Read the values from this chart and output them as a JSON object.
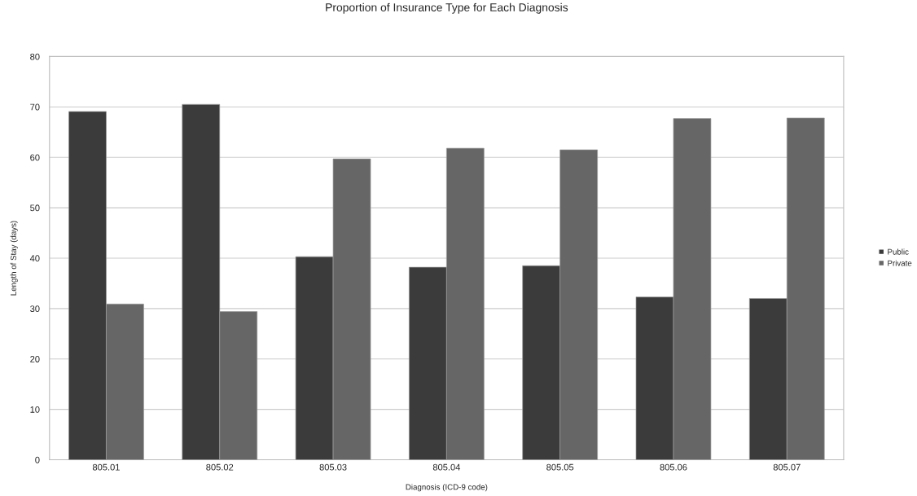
{
  "chart_data": {
    "type": "bar",
    "title": "Proportion of Insurance Type for Each Diagnosis",
    "xlabel": "Diagnosis (ICD-9 code)",
    "ylabel": "Length of Stay (days)",
    "categories": [
      "805.01",
      "805.02",
      "805.03",
      "805.04",
      "805.05",
      "805.06",
      "805.07"
    ],
    "series": [
      {
        "name": "Public",
        "color": "#3b3b3b",
        "values": [
          69.1,
          70.5,
          40.3,
          38.2,
          38.5,
          32.3,
          32.0
        ]
      },
      {
        "name": "Private",
        "color": "#666666",
        "values": [
          30.9,
          29.4,
          59.7,
          61.8,
          61.5,
          67.7,
          67.8
        ]
      }
    ],
    "ylim": [
      0,
      80
    ],
    "yticks": [
      0,
      10,
      20,
      30,
      40,
      50,
      60,
      70,
      80
    ],
    "grid": "y",
    "legend": "right"
  }
}
